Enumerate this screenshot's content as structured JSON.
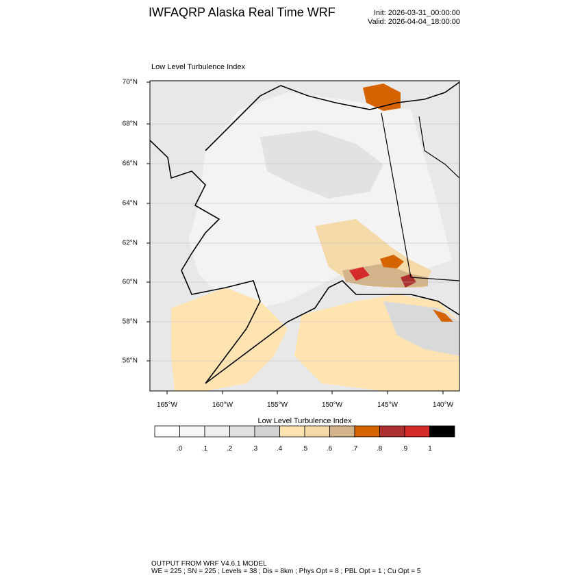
{
  "header": {
    "title": "IWFAQRP Alaska Real Time WRF",
    "init": "Init: 2026-03-31_00:00:00",
    "valid": "Valid: 2026-04-04_18:00:00"
  },
  "map": {
    "panel_title": "Low Level Turbulence Index",
    "lat_labels": [
      "70°N",
      "68°N",
      "66°N",
      "64°N",
      "62°N",
      "60°N",
      "58°N",
      "56°N"
    ],
    "lon_labels": [
      "165°W",
      "160°W",
      "155°W",
      "150°W",
      "145°W",
      "140°W"
    ]
  },
  "colorbar": {
    "title": "Low Level Turbulence Index",
    "tick_labels": [
      ".0",
      ".1",
      ".2",
      ".3",
      ".4",
      ".5",
      ".6",
      ".7",
      ".8",
      ".9",
      "1"
    ],
    "colors": [
      "#ffffff",
      "#f7f7f7",
      "#efefef",
      "#e1e1e1",
      "#d4d4d4",
      "#ffe4b2",
      "#f4d9a9",
      "#d2b38a",
      "#d56400",
      "#ad3030",
      "#d42a2a",
      "#000000"
    ]
  },
  "footer": {
    "line1": "OUTPUT FROM WRF V4.6.1 MODEL",
    "line2": "WE = 225 ; SN = 225 ; Levels = 38 ; Dis = 8km ; Phys Opt = 8 ; PBL Opt = 1 ; Cu Opt = 5"
  }
}
